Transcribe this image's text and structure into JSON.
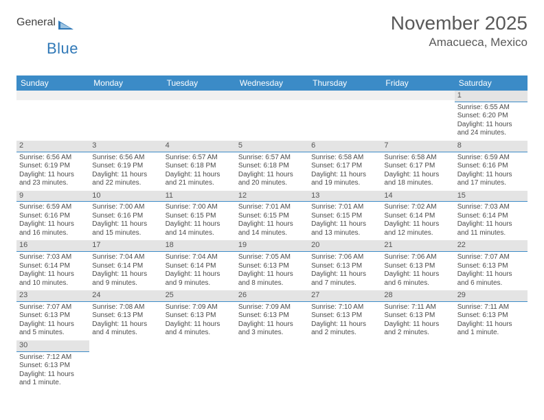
{
  "logo": {
    "text1": "General",
    "text2": "Blue",
    "color1": "#5a5a5a",
    "color2": "#2f78b7",
    "tri_color": "#2f78b7"
  },
  "title": "November 2025",
  "location": "Amacueca, Mexico",
  "colors": {
    "header_bg": "#3b8bc7",
    "header_text": "#ffffff",
    "daynum_bg": "#e4e4e4",
    "cell_border": "#3b8bc7",
    "blank_bg": "#f0f0f0",
    "body_text": "#4a4a4a"
  },
  "day_headers": [
    "Sunday",
    "Monday",
    "Tuesday",
    "Wednesday",
    "Thursday",
    "Friday",
    "Saturday"
  ],
  "weeks": [
    [
      {
        "blank": true
      },
      {
        "blank": true
      },
      {
        "blank": true
      },
      {
        "blank": true
      },
      {
        "blank": true
      },
      {
        "blank": true
      },
      {
        "n": "1",
        "sr": "6:55 AM",
        "ss": "6:20 PM",
        "dl": "11 hours and 24 minutes."
      }
    ],
    [
      {
        "n": "2",
        "sr": "6:56 AM",
        "ss": "6:19 PM",
        "dl": "11 hours and 23 minutes."
      },
      {
        "n": "3",
        "sr": "6:56 AM",
        "ss": "6:19 PM",
        "dl": "11 hours and 22 minutes."
      },
      {
        "n": "4",
        "sr": "6:57 AM",
        "ss": "6:18 PM",
        "dl": "11 hours and 21 minutes."
      },
      {
        "n": "5",
        "sr": "6:57 AM",
        "ss": "6:18 PM",
        "dl": "11 hours and 20 minutes."
      },
      {
        "n": "6",
        "sr": "6:58 AM",
        "ss": "6:17 PM",
        "dl": "11 hours and 19 minutes."
      },
      {
        "n": "7",
        "sr": "6:58 AM",
        "ss": "6:17 PM",
        "dl": "11 hours and 18 minutes."
      },
      {
        "n": "8",
        "sr": "6:59 AM",
        "ss": "6:16 PM",
        "dl": "11 hours and 17 minutes."
      }
    ],
    [
      {
        "n": "9",
        "sr": "6:59 AM",
        "ss": "6:16 PM",
        "dl": "11 hours and 16 minutes."
      },
      {
        "n": "10",
        "sr": "7:00 AM",
        "ss": "6:16 PM",
        "dl": "11 hours and 15 minutes."
      },
      {
        "n": "11",
        "sr": "7:00 AM",
        "ss": "6:15 PM",
        "dl": "11 hours and 14 minutes."
      },
      {
        "n": "12",
        "sr": "7:01 AM",
        "ss": "6:15 PM",
        "dl": "11 hours and 14 minutes."
      },
      {
        "n": "13",
        "sr": "7:01 AM",
        "ss": "6:15 PM",
        "dl": "11 hours and 13 minutes."
      },
      {
        "n": "14",
        "sr": "7:02 AM",
        "ss": "6:14 PM",
        "dl": "11 hours and 12 minutes."
      },
      {
        "n": "15",
        "sr": "7:03 AM",
        "ss": "6:14 PM",
        "dl": "11 hours and 11 minutes."
      }
    ],
    [
      {
        "n": "16",
        "sr": "7:03 AM",
        "ss": "6:14 PM",
        "dl": "11 hours and 10 minutes."
      },
      {
        "n": "17",
        "sr": "7:04 AM",
        "ss": "6:14 PM",
        "dl": "11 hours and 9 minutes."
      },
      {
        "n": "18",
        "sr": "7:04 AM",
        "ss": "6:14 PM",
        "dl": "11 hours and 9 minutes."
      },
      {
        "n": "19",
        "sr": "7:05 AM",
        "ss": "6:13 PM",
        "dl": "11 hours and 8 minutes."
      },
      {
        "n": "20",
        "sr": "7:06 AM",
        "ss": "6:13 PM",
        "dl": "11 hours and 7 minutes."
      },
      {
        "n": "21",
        "sr": "7:06 AM",
        "ss": "6:13 PM",
        "dl": "11 hours and 6 minutes."
      },
      {
        "n": "22",
        "sr": "7:07 AM",
        "ss": "6:13 PM",
        "dl": "11 hours and 6 minutes."
      }
    ],
    [
      {
        "n": "23",
        "sr": "7:07 AM",
        "ss": "6:13 PM",
        "dl": "11 hours and 5 minutes."
      },
      {
        "n": "24",
        "sr": "7:08 AM",
        "ss": "6:13 PM",
        "dl": "11 hours and 4 minutes."
      },
      {
        "n": "25",
        "sr": "7:09 AM",
        "ss": "6:13 PM",
        "dl": "11 hours and 4 minutes."
      },
      {
        "n": "26",
        "sr": "7:09 AM",
        "ss": "6:13 PM",
        "dl": "11 hours and 3 minutes."
      },
      {
        "n": "27",
        "sr": "7:10 AM",
        "ss": "6:13 PM",
        "dl": "11 hours and 2 minutes."
      },
      {
        "n": "28",
        "sr": "7:11 AM",
        "ss": "6:13 PM",
        "dl": "11 hours and 2 minutes."
      },
      {
        "n": "29",
        "sr": "7:11 AM",
        "ss": "6:13 PM",
        "dl": "11 hours and 1 minute."
      }
    ],
    [
      {
        "n": "30",
        "sr": "7:12 AM",
        "ss": "6:13 PM",
        "dl": "11 hours and 1 minute."
      },
      {
        "empty": true
      },
      {
        "empty": true
      },
      {
        "empty": true
      },
      {
        "empty": true
      },
      {
        "empty": true
      },
      {
        "empty": true
      }
    ]
  ],
  "labels": {
    "sunrise": "Sunrise: ",
    "sunset": "Sunset: ",
    "daylight": "Daylight: "
  }
}
